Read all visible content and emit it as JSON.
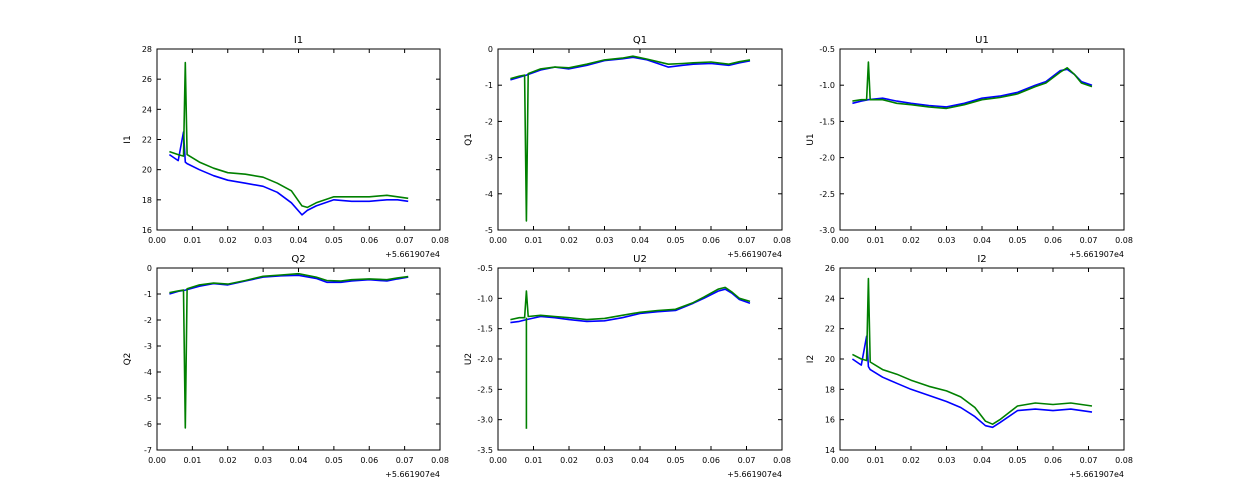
{
  "colors": {
    "series_blue": "#0000ff",
    "series_green": "#008000",
    "axes": "#000000",
    "background": "#ffffff"
  },
  "chart_data": [
    {
      "type": "line",
      "title": "I1",
      "ylabel": "I1",
      "xlabel": "",
      "xlim": [
        0.0,
        0.08
      ],
      "ylim": [
        16,
        28
      ],
      "xticks": [
        "0.00",
        "0.01",
        "0.02",
        "0.03",
        "0.04",
        "0.05",
        "0.06",
        "0.07",
        "0.08"
      ],
      "yticks": [
        "16",
        "18",
        "20",
        "22",
        "24",
        "26",
        "28"
      ],
      "offset_label": "+5.661907e4",
      "series": [
        {
          "color": "#0000ff",
          "x": [
            0.0035,
            0.006,
            0.0075,
            0.008,
            0.0085,
            0.012,
            0.016,
            0.02,
            0.025,
            0.03,
            0.034,
            0.038,
            0.041,
            0.0425,
            0.045,
            0.05,
            0.055,
            0.06,
            0.065,
            0.068,
            0.071
          ],
          "y": [
            21.0,
            20.6,
            22.5,
            20.5,
            20.4,
            20.0,
            19.6,
            19.3,
            19.1,
            18.9,
            18.5,
            17.8,
            17.0,
            17.3,
            17.6,
            18.0,
            17.9,
            17.9,
            18.0,
            18.0,
            17.9
          ]
        },
        {
          "color": "#008000",
          "x": [
            0.0035,
            0.006,
            0.0075,
            0.008,
            0.0085,
            0.012,
            0.016,
            0.02,
            0.025,
            0.03,
            0.034,
            0.038,
            0.041,
            0.0425,
            0.045,
            0.05,
            0.055,
            0.06,
            0.065,
            0.068,
            0.071
          ],
          "y": [
            21.2,
            21.0,
            20.9,
            27.1,
            21.0,
            20.5,
            20.1,
            19.8,
            19.7,
            19.5,
            19.1,
            18.6,
            17.6,
            17.5,
            17.8,
            18.2,
            18.2,
            18.2,
            18.3,
            18.2,
            18.1
          ]
        }
      ]
    },
    {
      "type": "line",
      "title": "Q1",
      "ylabel": "Q1",
      "xlabel": "",
      "xlim": [
        0.0,
        0.08
      ],
      "ylim": [
        -5,
        0
      ],
      "xticks": [
        "0.00",
        "0.01",
        "0.02",
        "0.03",
        "0.04",
        "0.05",
        "0.06",
        "0.07",
        "0.08"
      ],
      "yticks": [
        "-5",
        "-4",
        "-3",
        "-2",
        "-1",
        "0"
      ],
      "offset_label": "+5.661907e4",
      "series": [
        {
          "color": "#0000ff",
          "x": [
            0.0035,
            0.006,
            0.008,
            0.012,
            0.016,
            0.02,
            0.025,
            0.03,
            0.035,
            0.038,
            0.042,
            0.045,
            0.048,
            0.052,
            0.055,
            0.06,
            0.065,
            0.068,
            0.071
          ],
          "y": [
            -0.85,
            -0.78,
            -0.72,
            -0.58,
            -0.5,
            -0.55,
            -0.45,
            -0.32,
            -0.27,
            -0.23,
            -0.3,
            -0.4,
            -0.5,
            -0.45,
            -0.42,
            -0.4,
            -0.45,
            -0.38,
            -0.33
          ]
        },
        {
          "color": "#008000",
          "x": [
            0.0035,
            0.006,
            0.0075,
            0.008,
            0.0085,
            0.012,
            0.016,
            0.02,
            0.025,
            0.03,
            0.035,
            0.038,
            0.042,
            0.045,
            0.048,
            0.052,
            0.055,
            0.06,
            0.065,
            0.068,
            0.071
          ],
          "y": [
            -0.82,
            -0.75,
            -0.72,
            -4.75,
            -0.68,
            -0.55,
            -0.5,
            -0.52,
            -0.42,
            -0.3,
            -0.25,
            -0.2,
            -0.28,
            -0.35,
            -0.42,
            -0.4,
            -0.38,
            -0.36,
            -0.42,
            -0.35,
            -0.3
          ]
        }
      ]
    },
    {
      "type": "line",
      "title": "U1",
      "ylabel": "U1",
      "xlabel": "",
      "xlim": [
        0.0,
        0.08
      ],
      "ylim": [
        -3.0,
        -0.5
      ],
      "xticks": [
        "0.00",
        "0.01",
        "0.02",
        "0.03",
        "0.04",
        "0.05",
        "0.06",
        "0.07",
        "0.08"
      ],
      "yticks": [
        "-3.0",
        "-2.5",
        "-2.0",
        "-1.5",
        "-1.0",
        "-0.5"
      ],
      "offset_label": "+5.661907e4",
      "series": [
        {
          "color": "#0000ff",
          "x": [
            0.0035,
            0.006,
            0.008,
            0.012,
            0.016,
            0.02,
            0.025,
            0.03,
            0.035,
            0.04,
            0.045,
            0.05,
            0.055,
            0.058,
            0.062,
            0.064,
            0.066,
            0.068,
            0.071
          ],
          "y": [
            -1.25,
            -1.22,
            -1.2,
            -1.18,
            -1.22,
            -1.25,
            -1.28,
            -1.3,
            -1.25,
            -1.18,
            -1.15,
            -1.1,
            -1.0,
            -0.95,
            -0.8,
            -0.78,
            -0.85,
            -0.95,
            -1.0
          ]
        },
        {
          "color": "#008000",
          "x": [
            0.0035,
            0.006,
            0.0075,
            0.008,
            0.0085,
            0.012,
            0.016,
            0.02,
            0.025,
            0.03,
            0.035,
            0.04,
            0.045,
            0.05,
            0.055,
            0.058,
            0.062,
            0.064,
            0.066,
            0.068,
            0.071
          ],
          "y": [
            -1.22,
            -1.2,
            -1.2,
            -0.68,
            -1.2,
            -1.2,
            -1.25,
            -1.27,
            -1.3,
            -1.32,
            -1.27,
            -1.2,
            -1.17,
            -1.12,
            -1.02,
            -0.97,
            -0.82,
            -0.76,
            -0.85,
            -0.97,
            -1.02
          ]
        }
      ]
    },
    {
      "type": "line",
      "title": "Q2",
      "ylabel": "Q2",
      "xlabel": "",
      "xlim": [
        0.0,
        0.08
      ],
      "ylim": [
        -7,
        0
      ],
      "xticks": [
        "0.00",
        "0.01",
        "0.02",
        "0.03",
        "0.04",
        "0.05",
        "0.06",
        "0.07",
        "0.08"
      ],
      "yticks": [
        "-7",
        "-6",
        "-5",
        "-4",
        "-3",
        "-2",
        "-1",
        "0"
      ],
      "offset_label": "+5.661907e4",
      "series": [
        {
          "color": "#0000ff",
          "x": [
            0.0035,
            0.006,
            0.008,
            0.012,
            0.016,
            0.02,
            0.025,
            0.03,
            0.035,
            0.04,
            0.045,
            0.048,
            0.052,
            0.055,
            0.06,
            0.065,
            0.068,
            0.071
          ],
          "y": [
            -1.0,
            -0.9,
            -0.85,
            -0.7,
            -0.6,
            -0.65,
            -0.5,
            -0.35,
            -0.3,
            -0.28,
            -0.4,
            -0.55,
            -0.55,
            -0.5,
            -0.45,
            -0.5,
            -0.42,
            -0.35
          ]
        },
        {
          "color": "#008000",
          "x": [
            0.0035,
            0.006,
            0.0075,
            0.008,
            0.0085,
            0.012,
            0.016,
            0.02,
            0.025,
            0.03,
            0.035,
            0.04,
            0.045,
            0.048,
            0.052,
            0.055,
            0.06,
            0.065,
            0.068,
            0.071
          ],
          "y": [
            -0.95,
            -0.88,
            -0.85,
            -6.15,
            -0.8,
            -0.65,
            -0.58,
            -0.62,
            -0.48,
            -0.32,
            -0.27,
            -0.22,
            -0.35,
            -0.48,
            -0.5,
            -0.45,
            -0.42,
            -0.45,
            -0.38,
            -0.33
          ]
        }
      ]
    },
    {
      "type": "line",
      "title": "U2",
      "ylabel": "U2",
      "xlabel": "",
      "xlim": [
        0.0,
        0.08
      ],
      "ylim": [
        -3.5,
        -0.5
      ],
      "xticks": [
        "0.00",
        "0.01",
        "0.02",
        "0.03",
        "0.04",
        "0.05",
        "0.06",
        "0.07",
        "0.08"
      ],
      "yticks": [
        "-3.5",
        "-3.0",
        "-2.5",
        "-2.0",
        "-1.5",
        "-1.0",
        "-0.5"
      ],
      "offset_label": "+5.661907e4",
      "series": [
        {
          "color": "#0000ff",
          "x": [
            0.0035,
            0.006,
            0.008,
            0.012,
            0.016,
            0.02,
            0.025,
            0.03,
            0.035,
            0.04,
            0.045,
            0.05,
            0.055,
            0.058,
            0.062,
            0.064,
            0.066,
            0.068,
            0.071
          ],
          "y": [
            -1.4,
            -1.38,
            -1.35,
            -1.3,
            -1.32,
            -1.35,
            -1.38,
            -1.37,
            -1.32,
            -1.25,
            -1.22,
            -1.2,
            -1.08,
            -1.0,
            -0.88,
            -0.85,
            -0.92,
            -1.02,
            -1.08
          ]
        },
        {
          "color": "#008000",
          "x": [
            0.0035,
            0.006,
            0.0075,
            0.008,
            0.0085,
            0.012,
            0.016,
            0.02,
            0.025,
            0.03,
            0.035,
            0.04,
            0.045,
            0.05,
            0.055,
            0.058,
            0.062,
            0.064,
            0.066,
            0.068,
            0.071
          ],
          "y": [
            -1.35,
            -1.32,
            -1.32,
            -0.88,
            -1.3,
            -1.28,
            -1.3,
            -1.32,
            -1.35,
            -1.33,
            -1.28,
            -1.23,
            -1.2,
            -1.18,
            -1.07,
            -0.98,
            -0.85,
            -0.82,
            -0.9,
            -1.0,
            -1.05
          ]
        },
        {
          "color": "#008000",
          "x": [
            0.008,
            0.008
          ],
          "y": [
            -1.32,
            -3.15
          ]
        }
      ]
    },
    {
      "type": "line",
      "title": "I2",
      "ylabel": "I2",
      "xlabel": "",
      "xlim": [
        0.0,
        0.08
      ],
      "ylim": [
        14,
        26
      ],
      "xticks": [
        "0.00",
        "0.01",
        "0.02",
        "0.03",
        "0.04",
        "0.05",
        "0.06",
        "0.07",
        "0.08"
      ],
      "yticks": [
        "14",
        "16",
        "18",
        "20",
        "22",
        "24",
        "26"
      ],
      "offset_label": "+5.661907e4",
      "series": [
        {
          "color": "#0000ff",
          "x": [
            0.0035,
            0.006,
            0.0075,
            0.008,
            0.0085,
            0.012,
            0.016,
            0.02,
            0.025,
            0.03,
            0.034,
            0.038,
            0.041,
            0.043,
            0.045,
            0.05,
            0.055,
            0.06,
            0.065,
            0.068,
            0.071
          ],
          "y": [
            20.0,
            19.6,
            21.5,
            19.5,
            19.3,
            18.8,
            18.4,
            18.0,
            17.6,
            17.2,
            16.8,
            16.2,
            15.6,
            15.5,
            15.8,
            16.6,
            16.7,
            16.6,
            16.7,
            16.6,
            16.5
          ]
        },
        {
          "color": "#008000",
          "x": [
            0.0035,
            0.006,
            0.0075,
            0.008,
            0.0085,
            0.012,
            0.016,
            0.02,
            0.025,
            0.03,
            0.034,
            0.038,
            0.041,
            0.043,
            0.045,
            0.05,
            0.055,
            0.06,
            0.065,
            0.068,
            0.071
          ],
          "y": [
            20.3,
            20.0,
            19.9,
            25.3,
            19.8,
            19.3,
            19.0,
            18.6,
            18.2,
            17.9,
            17.5,
            16.8,
            15.9,
            15.7,
            16.0,
            16.9,
            17.1,
            17.0,
            17.1,
            17.0,
            16.9
          ]
        }
      ]
    }
  ]
}
